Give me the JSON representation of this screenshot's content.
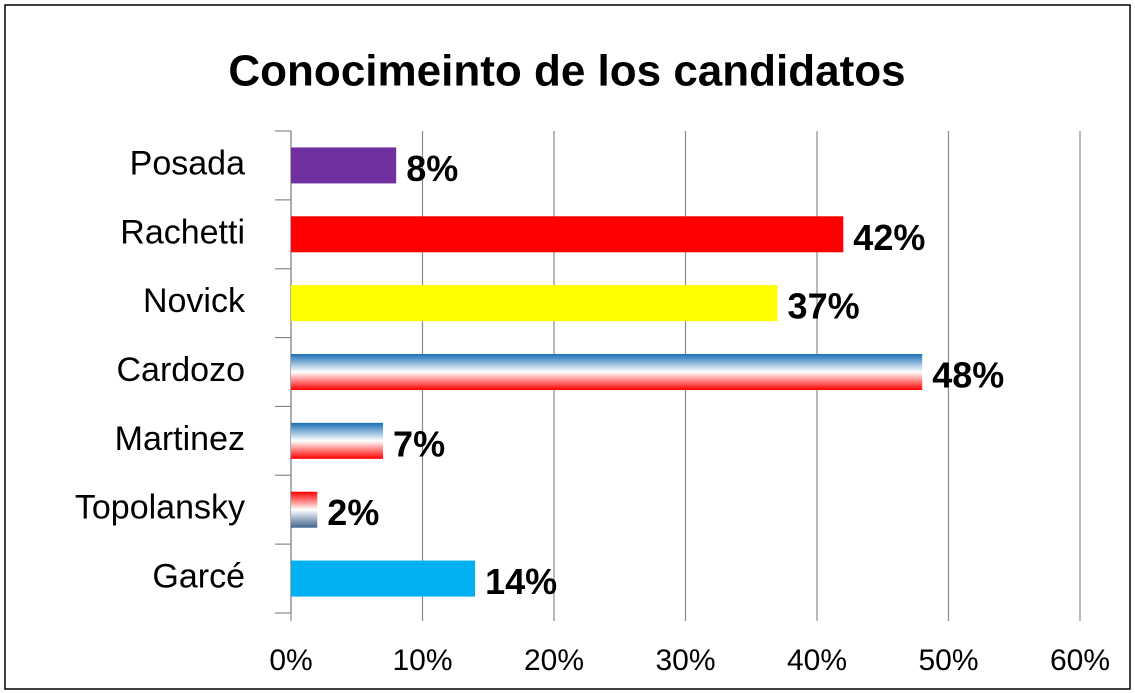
{
  "chart_data": {
    "type": "bar",
    "orientation": "horizontal",
    "title": "Conocimeinto de los candidatos",
    "categories": [
      "Posada",
      "Rachetti",
      "Novick",
      "Cardozo",
      "Martinez",
      "Topolansky",
      "Garcé"
    ],
    "values": [
      8,
      42,
      37,
      48,
      7,
      2,
      14
    ],
    "value_labels": [
      "8%",
      "42%",
      "37%",
      "48%",
      "7%",
      "2%",
      "14%"
    ],
    "colors": [
      "#7030a0",
      "#ff0000",
      "#ffff00",
      [
        "#1a6fb5",
        "#ffffff",
        "#ff0000"
      ],
      [
        "#1a6fb5",
        "#ffffff",
        "#ff0000"
      ],
      [
        "#ff0000",
        "#ffffff",
        "#3f6390"
      ],
      "#00b0f0"
    ],
    "xlim": [
      0,
      60
    ],
    "xticks": [
      {
        "value": 0,
        "label": "0%"
      },
      {
        "value": 10,
        "label": "10%"
      },
      {
        "value": 20,
        "label": "20%"
      },
      {
        "value": 30,
        "label": "30%"
      },
      {
        "value": 40,
        "label": "40%"
      },
      {
        "value": 50,
        "label": "50%"
      },
      {
        "value": 60,
        "label": "60%"
      }
    ],
    "grid": true
  }
}
